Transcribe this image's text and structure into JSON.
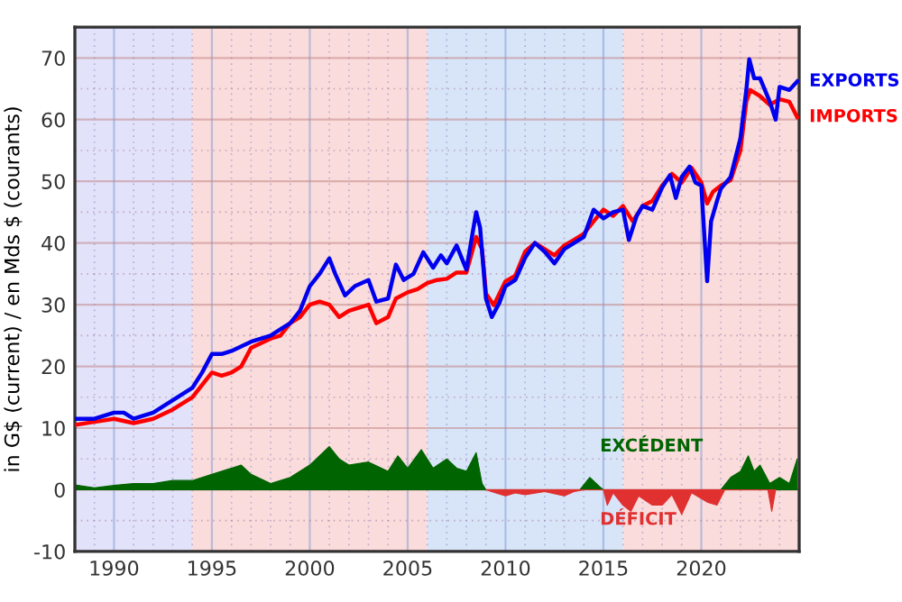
{
  "chart_data": {
    "type": "line",
    "ylabel": "in G$ (current) / en Mds $ (courants)",
    "xlim": [
      1988,
      2025
    ],
    "ylim": [
      -10,
      75
    ],
    "xticks": [
      {
        "value": 1988,
        "label": null
      },
      {
        "value": 1989,
        "label": null
      },
      1990,
      {
        "value": 1991,
        "label": null
      },
      {
        "value": 1992,
        "label": null
      },
      {
        "value": 1993,
        "label": null
      },
      {
        "value": 1994,
        "label": null
      },
      1995,
      {
        "value": 1996,
        "label": null
      },
      {
        "value": 1997,
        "label": null
      },
      {
        "value": 1998,
        "label": null
      },
      {
        "value": 1999,
        "label": null
      },
      2000,
      {
        "value": 2001,
        "label": null
      },
      {
        "value": 2002,
        "label": null
      },
      {
        "value": 2003,
        "label": null
      },
      {
        "value": 2004,
        "label": null
      },
      2005,
      {
        "value": 2006,
        "label": null
      },
      {
        "value": 2007,
        "label": null
      },
      {
        "value": 2008,
        "label": null
      },
      {
        "value": 2009,
        "label": null
      },
      2010,
      {
        "value": 2011,
        "label": null
      },
      {
        "value": 2012,
        "label": null
      },
      {
        "value": 2013,
        "label": null
      },
      {
        "value": 2014,
        "label": null
      },
      2015,
      {
        "value": 2016,
        "label": null
      },
      {
        "value": 2017,
        "label": null
      },
      {
        "value": 2018,
        "label": null
      },
      {
        "value": 2019,
        "label": null
      },
      2020,
      {
        "value": 2021,
        "label": null
      },
      {
        "value": 2022,
        "label": null
      },
      {
        "value": 2023,
        "label": null
      },
      {
        "value": 2024,
        "label": null
      }
    ],
    "yticks": [
      -10,
      {
        "value": -5,
        "label": null
      },
      0,
      {
        "value": 5,
        "label": null
      },
      10,
      {
        "value": 15,
        "label": null
      },
      20,
      {
        "value": 25,
        "label": null
      },
      30,
      {
        "value": 35,
        "label": null
      },
      40,
      {
        "value": 45,
        "label": null
      },
      50,
      {
        "value": 55,
        "label": null
      },
      60,
      {
        "value": 65,
        "label": null
      },
      70
    ],
    "grid": true,
    "legend": false,
    "bands": [
      {
        "axis": "x",
        "from": 1988,
        "to": 1994,
        "color": "#e2e2fa"
      },
      {
        "axis": "x",
        "from": 1994,
        "to": 2006,
        "color": "#fadcdc"
      },
      {
        "axis": "x",
        "from": 2006,
        "to": 2016,
        "color": "#d8e4f8"
      },
      {
        "axis": "x",
        "from": 2016,
        "to": 2025,
        "color": "#fadcdc"
      }
    ],
    "series": [
      {
        "name": "EXCÉDENT",
        "type": "area",
        "color": "#006400",
        "x": [
          1988,
          1989,
          1990,
          1991,
          1992,
          1993,
          1994,
          1995,
          1996,
          1996.5,
          1997,
          1998,
          1999,
          2000,
          2001,
          2001.5,
          2002,
          2003,
          2004,
          2004.5,
          2005,
          2005.7,
          2006.3,
          2007,
          2007.5,
          2008,
          2008.5,
          2008.8,
          2009,
          2013.8,
          2014.3,
          2014.8,
          2015,
          2021,
          2021.5,
          2022,
          2022.4,
          2022.7,
          2023,
          2023.5,
          2024,
          2024.5,
          2024.9
        ],
        "values": [
          0.8,
          0.3,
          0.7,
          1,
          1,
          1.5,
          1.5,
          2.5,
          3.5,
          4,
          2.5,
          1,
          2,
          4,
          7,
          5,
          4,
          4.5,
          3,
          5.5,
          3.5,
          6.5,
          3.5,
          5,
          3.5,
          3,
          6,
          1,
          0,
          0,
          2,
          0.5,
          0,
          0,
          2,
          3,
          5.5,
          3,
          4,
          1,
          2,
          1,
          5
        ]
      },
      {
        "name": "DÉFICIT",
        "type": "area",
        "color": "#e03030",
        "x": [
          2009,
          2009.5,
          2010,
          2010.5,
          2011,
          2012,
          2013,
          2013.5,
          2014,
          2015,
          2015.2,
          2015.5,
          2016,
          2016.4,
          2016.8,
          2017.5,
          2018,
          2018.5,
          2019,
          2019.5,
          2020.3,
          2020.8,
          2021.2,
          2023.4,
          2023.6,
          2023.8
        ],
        "values": [
          0,
          -0.5,
          -1,
          -0.5,
          -0.8,
          -0.3,
          -1,
          -0.3,
          0,
          0,
          -2.5,
          -0.5,
          -2.5,
          -3.5,
          -1,
          -2.5,
          -2.5,
          -0.8,
          -4,
          -0.5,
          -2,
          -2.5,
          0,
          0,
          -3.5,
          0
        ]
      },
      {
        "name": "IMPORTS",
        "color": "#ff0000",
        "x": [
          1988,
          1989,
          1990,
          1991,
          1992,
          1993,
          1994,
          1994.5,
          1995,
          1995.5,
          1996,
          1996.5,
          1997,
          1998,
          1998.5,
          1999,
          1999.5,
          2000,
          2000.5,
          2001,
          2001.5,
          2002,
          2003,
          2003.4,
          2004,
          2004.4,
          2005,
          2005.5,
          2006,
          2006.5,
          2007,
          2007.5,
          2008,
          2008.5,
          2008.8,
          2009,
          2009.4,
          2010,
          2010.5,
          2011,
          2011.5,
          2012,
          2012.5,
          2013,
          2013.5,
          2014,
          2014.5,
          2015,
          2015.5,
          2016,
          2016.5,
          2017,
          2017.5,
          2018,
          2018.5,
          2019,
          2019.5,
          2020,
          2020.3,
          2020.6,
          2021,
          2021.5,
          2022,
          2022.3,
          2022.5,
          2023,
          2023.5,
          2024,
          2024.5,
          2024.9
        ],
        "values": [
          10.5,
          11,
          11.5,
          10.8,
          11.5,
          13,
          15,
          17,
          19,
          18.5,
          19,
          20,
          23,
          24.5,
          25,
          27,
          28,
          30,
          30.5,
          30,
          28,
          29,
          30,
          27,
          28,
          31,
          32,
          32.5,
          33.5,
          34,
          34.2,
          35.2,
          35.2,
          41,
          39,
          31.8,
          29.9,
          33.8,
          34.7,
          38.6,
          40,
          39,
          38,
          39.6,
          40.5,
          41.5,
          43.5,
          45.4,
          44.4,
          46,
          43.5,
          46,
          46.8,
          49.3,
          51.2,
          49.8,
          52.2,
          49.8,
          46.4,
          48.3,
          49.3,
          50.2,
          55,
          62.9,
          64.8,
          63.8,
          62.4,
          63.3,
          62.9,
          60.4
        ]
      },
      {
        "name": "EXPORTS",
        "color": "#0000ee",
        "x": [
          1988,
          1989,
          1990,
          1990.5,
          1991,
          1992,
          1993,
          1994,
          1994.5,
          1995,
          1995.5,
          1996,
          1997,
          1998,
          1998.5,
          1999,
          1999.5,
          2000,
          2000.5,
          2001,
          2001.3,
          2001.8,
          2002.3,
          2003,
          2003.4,
          2004,
          2004.4,
          2004.8,
          2005.3,
          2005.8,
          2006.3,
          2006.7,
          2007,
          2007.5,
          2008,
          2008.5,
          2008.7,
          2009,
          2009.3,
          2009.7,
          2010,
          2010.5,
          2011,
          2011.5,
          2012,
          2012.5,
          2013,
          2013.5,
          2014,
          2014.5,
          2015,
          2015.5,
          2016,
          2016.3,
          2016.7,
          2017,
          2017.5,
          2018,
          2018.4,
          2018.7,
          2019,
          2019.4,
          2019.7,
          2020,
          2020.3,
          2020.5,
          2020.8,
          2021,
          2021.5,
          2022,
          2022.3,
          2022.45,
          2022.7,
          2023,
          2023.5,
          2023.8,
          2024,
          2024.5,
          2024.9
        ],
        "values": [
          11.5,
          11.5,
          12.5,
          12.5,
          11.5,
          12.5,
          14.5,
          16.5,
          19,
          22,
          22,
          22.5,
          24,
          25,
          26,
          27,
          29,
          33,
          35,
          37.5,
          35,
          31.5,
          33,
          34,
          30.5,
          31,
          36.5,
          34,
          35,
          38.5,
          36,
          38,
          36.7,
          39.6,
          35.7,
          45,
          42.5,
          31,
          28,
          30.4,
          33,
          34,
          37.6,
          40,
          38.6,
          36.7,
          39,
          40,
          41,
          45.4,
          44,
          45,
          45.4,
          40.5,
          44.4,
          46,
          45.4,
          49,
          51,
          47.3,
          50.7,
          52.4,
          49.8,
          49.3,
          33.8,
          43.5,
          46.8,
          48.8,
          50.7,
          57,
          64.8,
          69.8,
          66.7,
          66.7,
          62.9,
          60,
          65.3,
          64.8,
          66.2
        ]
      }
    ]
  }
}
